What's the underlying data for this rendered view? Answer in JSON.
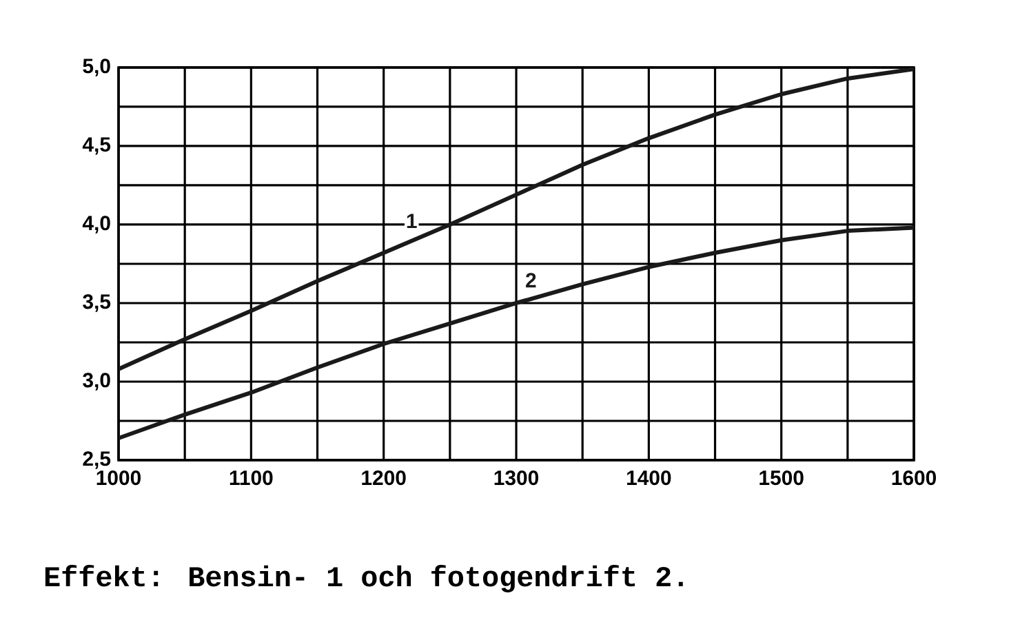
{
  "chart_data": {
    "type": "line",
    "title": "Effekt: Bensin- 1 och fotogendrift 2.",
    "x": [
      1000,
      1050,
      1100,
      1150,
      1200,
      1250,
      1300,
      1350,
      1400,
      1450,
      1500,
      1550,
      1600
    ],
    "series": [
      {
        "name": "1",
        "color": "#1a1a1a",
        "values": [
          3.08,
          3.27,
          3.45,
          3.64,
          3.82,
          4.0,
          4.19,
          4.38,
          4.55,
          4.7,
          4.83,
          4.93,
          4.99
        ]
      },
      {
        "name": "2",
        "color": "#1a1a1a",
        "values": [
          2.64,
          2.79,
          2.93,
          3.09,
          3.24,
          3.37,
          3.5,
          3.62,
          3.73,
          3.82,
          3.9,
          3.96,
          3.98
        ]
      }
    ],
    "xlim": [
      1000,
      1600
    ],
    "ylim": [
      2.5,
      5.0
    ],
    "xticks": [
      1000,
      {
        "value": 1050,
        "label": null
      },
      1100,
      {
        "value": 1150,
        "label": null
      },
      1200,
      {
        "value": 1250,
        "label": null
      },
      1300,
      {
        "value": 1350,
        "label": null
      },
      1400,
      {
        "value": 1450,
        "label": null
      },
      1500,
      {
        "value": 1550,
        "label": null
      },
      1600
    ],
    "yticks": [
      {
        "value": 2.5,
        "label": "2,5"
      },
      {
        "value": 2.75,
        "label": null
      },
      {
        "value": 3.0,
        "label": "3,0"
      },
      {
        "value": 3.25,
        "label": null
      },
      {
        "value": 3.5,
        "label": "3,5"
      },
      {
        "value": 3.75,
        "label": null
      },
      {
        "value": 4.0,
        "label": "4,0"
      },
      {
        "value": 4.25,
        "label": null
      },
      {
        "value": 4.5,
        "label": "4,5"
      },
      {
        "value": 4.75,
        "label": null
      },
      {
        "value": 5.0,
        "label": "5,0"
      }
    ],
    "grid": true,
    "marker": "none",
    "line_style": "solid"
  }
}
